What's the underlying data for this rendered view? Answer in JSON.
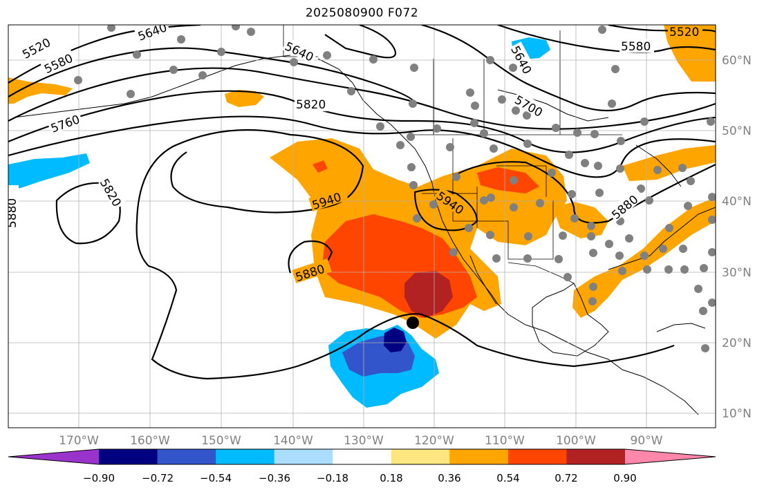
{
  "title": "2025080900 F072",
  "longitude_labels": [
    "170°W",
    "160°W",
    "150°W",
    "140°W",
    "130°W",
    "120°W",
    "110°W",
    "100°W",
    "90°W"
  ],
  "latitude_labels": [
    "60°N",
    "50°N",
    "40°N",
    "30°N",
    "20°N",
    "10°N"
  ],
  "contour_labels": [
    "5520",
    "5580",
    "5640",
    "5640",
    "5760",
    "5820",
    "5820",
    "5700",
    "5640",
    "5580",
    "5520",
    "5940",
    "5940",
    "5880",
    "5880",
    "5880"
  ],
  "colorbar": {
    "ticks": [
      "−0.90",
      "−0.72",
      "−0.54",
      "−0.36",
      "−0.18",
      "0.18",
      "0.36",
      "0.54",
      "0.72",
      "0.90"
    ],
    "colors": [
      "#9933cc",
      "#000080",
      "#3355cc",
      "#00bbff",
      "#aaddff",
      "#ffffff",
      "#ffe680",
      "#ffa500",
      "#ff4500",
      "#b22222",
      "#ff88aa"
    ]
  },
  "marker": "storm-center"
}
